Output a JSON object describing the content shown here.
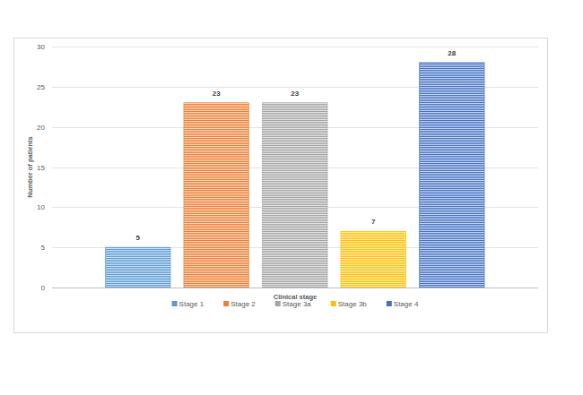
{
  "chart_data": {
    "type": "bar",
    "x_label": "Clinical stage",
    "y_label": "Number of patients",
    "categories": [
      "Stage 1",
      "Stage 2",
      "Stage 3a",
      "Stage 3b",
      "Stage 4"
    ],
    "values": [
      5,
      23,
      23,
      7,
      28
    ],
    "colors": [
      "#5b9bd5",
      "#ed7d31",
      "#a5a5a5",
      "#ffc000",
      "#4472c4"
    ],
    "ylim": [
      0,
      30
    ],
    "yticks": [
      0,
      5,
      10,
      15,
      20,
      25,
      30
    ],
    "grid": true,
    "data_labels": true,
    "legend": "bottom"
  }
}
